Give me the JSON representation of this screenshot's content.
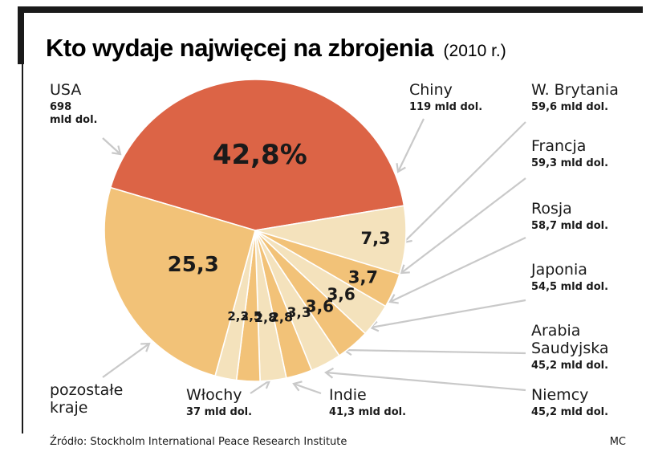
{
  "chart_data": {
    "type": "pie",
    "title": "Kto wydaje najwięcej na zbrojenia",
    "subtitle": "(2010 r.)",
    "unit": "%",
    "slices": [
      {
        "name": "USA",
        "value": 42.8,
        "label": "42,8%",
        "amount": "698\nmld dol.",
        "color": "#dc6446"
      },
      {
        "name": "Chiny",
        "value": 7.3,
        "label": "7,3",
        "amount": "119 mld dol.",
        "color": "#f4e2bc"
      },
      {
        "name": "W. Brytania",
        "value": 3.7,
        "label": "3,7",
        "amount": "59,6 mld dol.",
        "color": "#f2c278"
      },
      {
        "name": "Francja",
        "value": 3.6,
        "label": "3,6",
        "amount": "59,3 mld dol.",
        "color": "#f4e2bc"
      },
      {
        "name": "Rosja",
        "value": 3.6,
        "label": "3,6",
        "amount": "58,7 mld dol.",
        "color": "#f2c278"
      },
      {
        "name": "Japonia",
        "value": 3.3,
        "label": "3,3",
        "amount": "54,5 mld dol.",
        "color": "#f4e2bc"
      },
      {
        "name": "Arabia\nSaudyjska",
        "value": 2.8,
        "label": "2,8",
        "amount": "45,2 mld dol.",
        "color": "#f2c278"
      },
      {
        "name": "Niemcy",
        "value": 2.8,
        "label": "2,8",
        "amount": "45,2 mld dol.",
        "color": "#f4e2bc"
      },
      {
        "name": "Indie",
        "value": 2.5,
        "label": "2,5",
        "amount": "41,3 mld dol.",
        "color": "#f2c278"
      },
      {
        "name": "Włochy",
        "value": 2.3,
        "label": "2,3",
        "amount": "37 mld dol.",
        "color": "#f4e2bc"
      },
      {
        "name": "pozostałe\nkraje",
        "value": 25.3,
        "label": "25,3",
        "amount": "",
        "color": "#f2c278"
      }
    ]
  },
  "footer": {
    "source": "Źródło: Stockholm International Peace Research Institute",
    "credit": "MC"
  },
  "colors": {
    "frame": "#1a1a1a",
    "leader": "#c9c9c9",
    "slice_label_light": "#ffffff"
  }
}
